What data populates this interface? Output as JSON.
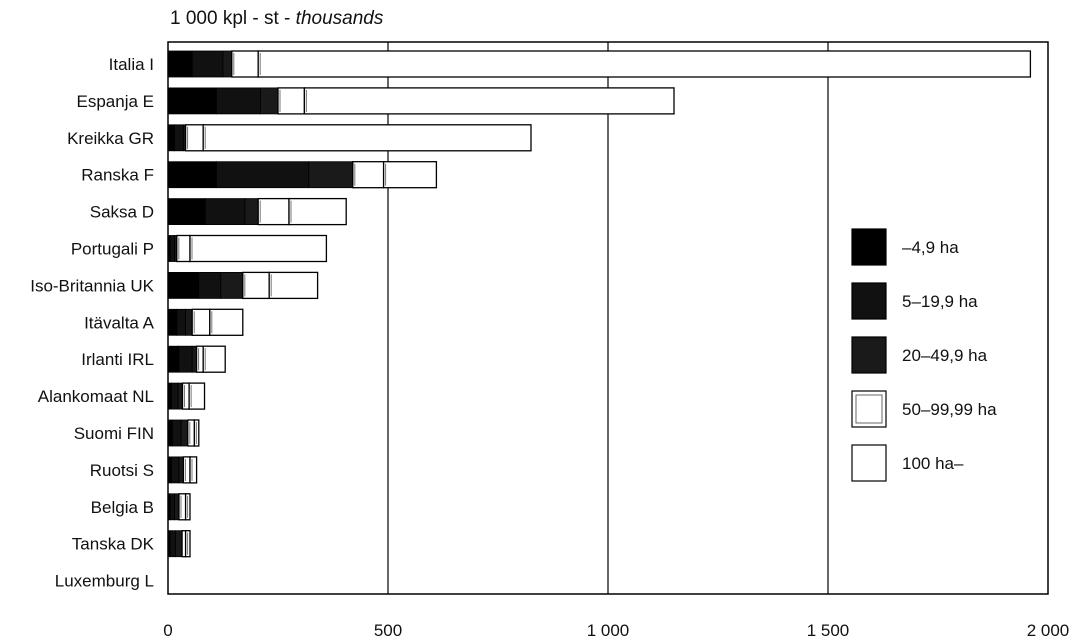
{
  "chart_data": {
    "type": "bar",
    "orientation": "horizontal",
    "stacked": true,
    "title": "1 000 kpl - st - ",
    "title_italic": "thousands",
    "categories": [
      "Italia I",
      "Espanja E",
      "Kreikka GR",
      "Ranska F",
      "Saksa D",
      "Portugali P",
      "Iso-Britannia UK",
      "Itävalta A",
      "Irlanti IRL",
      "Alankomaat NL",
      "Suomi FIN",
      "Ruotsi S",
      "Belgia B",
      "Tanska DK",
      "Luxemburg L"
    ],
    "series": [
      {
        "name": "–4,9 ha",
        "color": "#000000",
        "values": [
          55,
          110,
          15,
          110,
          85,
          5,
          70,
          20,
          25,
          8,
          10,
          8,
          5,
          5,
          0
        ]
      },
      {
        "name": "5–19,9 ha",
        "color": "#111111",
        "values": [
          70,
          100,
          20,
          210,
          90,
          10,
          50,
          20,
          30,
          15,
          20,
          17,
          10,
          12,
          0
        ]
      },
      {
        "name": "20–49,9 ha",
        "color": "#1a1a1a",
        "values": [
          20,
          40,
          5,
          100,
          30,
          5,
          50,
          15,
          10,
          10,
          15,
          10,
          10,
          15,
          0
        ]
      },
      {
        "name": "50–99,99 ha",
        "color": "#ffffff",
        "values": [
          60,
          60,
          40,
          70,
          70,
          30,
          60,
          40,
          15,
          15,
          15,
          15,
          15,
          8,
          0
        ]
      },
      {
        "name": "100 ha–",
        "color": "#ffffff",
        "values": [
          1755,
          840,
          745,
          120,
          130,
          310,
          110,
          75,
          50,
          35,
          10,
          15,
          10,
          10,
          0
        ]
      }
    ],
    "xlim": [
      0,
      2000
    ],
    "xticks": [
      "0",
      "500",
      "1 000",
      "1 500",
      "2 000"
    ],
    "xtick_values": [
      0,
      500,
      1000,
      1500,
      2000
    ],
    "grid": true,
    "legend_position": "right"
  }
}
